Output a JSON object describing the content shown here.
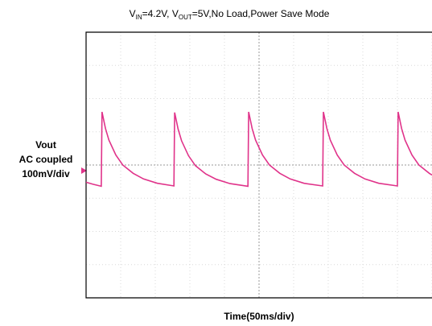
{
  "chart_data": {
    "type": "line",
    "title": [
      "V",
      "IN",
      "=4.2V, V",
      "OUT",
      "=5V,No Load,Power Save Mode"
    ],
    "ylabel": [
      "Vout",
      "AC coupled",
      "100mV/div"
    ],
    "xlabel": "Time(50ms/div)",
    "xlim": [
      0,
      500
    ],
    "ylim": [
      -400,
      400
    ],
    "xticks": [
      0,
      50,
      100,
      150,
      200,
      250,
      300,
      350,
      400,
      450,
      500
    ],
    "yticks": [
      -400,
      -300,
      -200,
      -100,
      0,
      100,
      200,
      300,
      400
    ],
    "grid": true,
    "series": [
      {
        "color": "#e0338a",
        "x": [
          0,
          10,
          22,
          23,
          28,
          33,
          43,
          53,
          68,
          83,
          103,
          127,
          128,
          133,
          138,
          148,
          158,
          173,
          188,
          208,
          234,
          235,
          240,
          245,
          255,
          265,
          280,
          295,
          315,
          342,
          343,
          348,
          353,
          363,
          373,
          388,
          403,
          423,
          450,
          451,
          456,
          461,
          471,
          481,
          496,
          500
        ],
        "values": [
          -52,
          -58,
          -64,
          160,
          110,
          75,
          30,
          0,
          -25,
          -42,
          -55,
          -63,
          158,
          108,
          73,
          28,
          -2,
          -27,
          -43,
          -56,
          -64,
          160,
          110,
          75,
          30,
          0,
          -25,
          -42,
          -55,
          -63,
          160,
          110,
          75,
          30,
          0,
          -25,
          -42,
          -55,
          -63,
          160,
          110,
          75,
          30,
          0,
          -25,
          -30
        ]
      }
    ]
  }
}
